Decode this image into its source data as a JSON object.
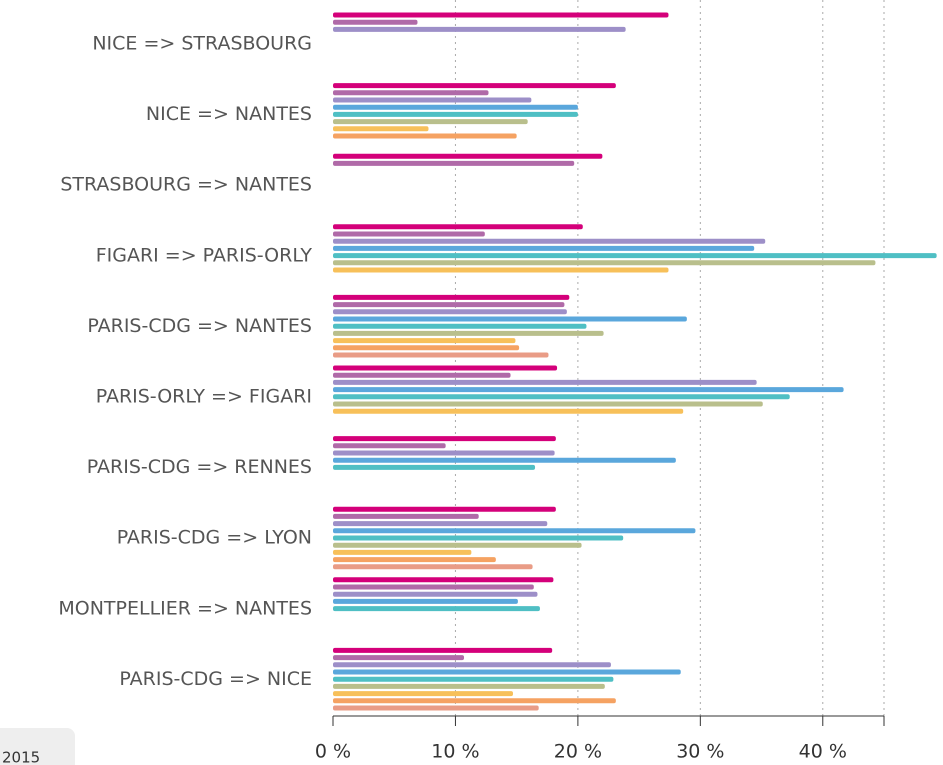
{
  "chart_data": {
    "type": "hbar",
    "categories": [
      "NICE => STRASBOURG",
      "NICE => NANTES",
      "STRASBOURG => NANTES",
      "FIGARI => PARIS-ORLY",
      "PARIS-CDG => NANTES",
      "PARIS-ORLY => FIGARI",
      "PARIS-CDG => RENNES",
      "PARIS-CDG => LYON",
      "MONTPELLIER => NANTES",
      "PARIS-CDG => NICE"
    ],
    "series": [
      {
        "color": "#d4007a",
        "values": [
          27.4,
          23.1,
          22.0,
          20.4,
          19.3,
          18.3,
          18.2,
          18.2,
          18.0,
          17.9
        ]
      },
      {
        "color": "#b06aa8",
        "values": [
          6.9,
          12.7,
          19.7,
          12.4,
          18.9,
          14.5,
          9.2,
          11.9,
          16.4,
          10.7
        ]
      },
      {
        "color": "#9d8fc8",
        "values": [
          23.9,
          16.2,
          null,
          35.3,
          19.1,
          34.6,
          18.1,
          17.5,
          16.7,
          22.7
        ]
      },
      {
        "color": "#5aa7dc",
        "values": [
          null,
          20.0,
          null,
          34.4,
          28.9,
          41.7,
          28.0,
          29.6,
          15.1,
          28.4
        ]
      },
      {
        "color": "#4fbfc4",
        "values": [
          null,
          20.0,
          null,
          49.3,
          20.7,
          37.3,
          16.5,
          23.7,
          16.9,
          22.9
        ]
      },
      {
        "color": "#b9bf8c",
        "values": [
          null,
          15.9,
          null,
          44.3,
          22.1,
          35.1,
          null,
          20.3,
          null,
          22.2
        ]
      },
      {
        "color": "#f7c05a",
        "values": [
          null,
          7.8,
          null,
          27.4,
          14.9,
          28.6,
          null,
          11.3,
          null,
          14.7
        ]
      },
      {
        "color": "#f5a262",
        "values": [
          null,
          15.0,
          null,
          null,
          15.2,
          null,
          null,
          13.3,
          null,
          23.1
        ]
      },
      {
        "color": "#e99c86",
        "values": [
          null,
          null,
          null,
          null,
          17.6,
          null,
          null,
          16.3,
          null,
          16.8
        ]
      }
    ],
    "xlim": [
      0,
      45
    ],
    "xticks": [
      {
        "value": 0,
        "label": "0 %"
      },
      {
        "value": 10,
        "label": "10 %"
      },
      {
        "value": 20,
        "label": "20 %"
      },
      {
        "value": 30,
        "label": "30 %"
      },
      {
        "value": 40,
        "label": "40 %"
      }
    ],
    "grid": true,
    "annotation": "2015"
  }
}
